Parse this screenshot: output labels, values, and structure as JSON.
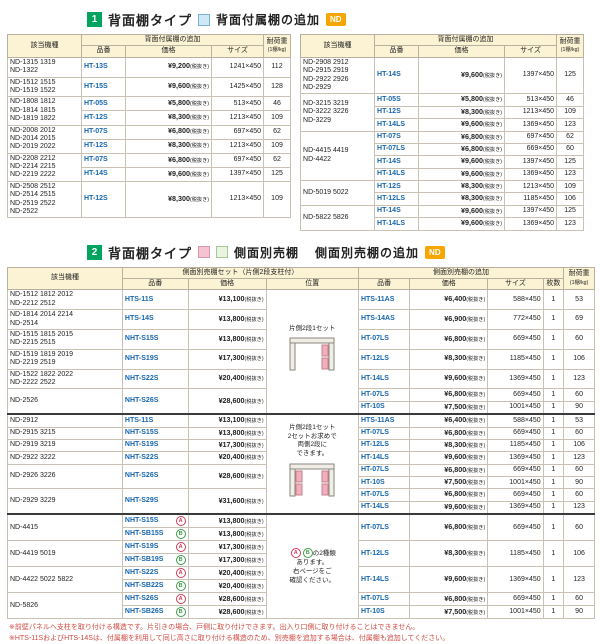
{
  "labels": {
    "tax_suffix": "(税抜き)",
    "col_model": "該当機種",
    "col_part": "品番",
    "col_price": "価格",
    "col_size": "サイズ",
    "col_load": "耐荷重",
    "col_load_sub": "(1棚/kg)",
    "col_count": "枚数",
    "col_position": "位置",
    "nd_badge": "ND"
  },
  "section1": {
    "number": "1",
    "title": "背面棚タイプ",
    "legend_label": "背面付属棚の追加",
    "group_header": "背面付属棚の追加",
    "tables": [
      {
        "groups": [
          {
            "models": [
              "ND-1315 1319",
              "ND-1322"
            ],
            "items": [
              {
                "code": "HT-13S",
                "price": "¥9,200",
                "size": "1241×450",
                "load": "112"
              }
            ]
          },
          {
            "models": [
              "ND-1512 1515",
              "ND-1519 1522"
            ],
            "items": [
              {
                "code": "HT-15S",
                "price": "¥9,600",
                "size": "1425×450",
                "load": "128"
              }
            ]
          },
          {
            "models": [
              "ND-1808 1812",
              "ND-1814 1815",
              "ND-1819 1822"
            ],
            "items": [
              {
                "code": "HT-05S",
                "price": "¥5,800",
                "size": "513×450",
                "load": "46"
              },
              {
                "code": "HT-12S",
                "price": "¥8,300",
                "size": "1213×450",
                "load": "109"
              }
            ]
          },
          {
            "models": [
              "ND-2008 2012",
              "ND-2014 2015",
              "ND-2019 2022"
            ],
            "items": [
              {
                "code": "HT-07S",
                "price": "¥6,800",
                "size": "697×450",
                "load": "62"
              },
              {
                "code": "HT-12S",
                "price": "¥8,300",
                "size": "1213×450",
                "load": "109"
              }
            ]
          },
          {
            "models": [
              "ND-2208 2212",
              "ND-2214 2215",
              "ND-2219 2222"
            ],
            "items": [
              {
                "code": "HT-07S",
                "price": "¥6,800",
                "size": "697×450",
                "load": "62"
              },
              {
                "code": "HT-14S",
                "price": "¥9,600",
                "size": "1397×450",
                "load": "125"
              }
            ]
          },
          {
            "models": [
              "ND-2508 2512",
              "ND-2514 2515",
              "ND-2519 2522",
              "ND-2522"
            ],
            "items": [
              {
                "code": "HT-12S",
                "price": "¥8,300",
                "size": "1213×450",
                "load": "109"
              }
            ]
          }
        ]
      },
      {
        "groups": [
          {
            "models": [
              "ND-2908 2912",
              "ND-2915 2919",
              "ND-2922 2926",
              "ND-2929"
            ],
            "items": [
              {
                "code": "HT-14S",
                "price": "¥9,600",
                "size": "1397×450",
                "load": "125"
              }
            ]
          },
          {
            "models": [
              "ND-3215 3219",
              "ND-3222 3226",
              "ND-3229"
            ],
            "items": [
              {
                "code": "HT-05S",
                "price": "¥5,800",
                "size": "513×450",
                "load": "46"
              },
              {
                "code": "HT-12S",
                "price": "¥8,300",
                "size": "1213×450",
                "load": "109"
              },
              {
                "code": "HT-14LS",
                "price": "¥9,600",
                "size": "1369×450",
                "load": "123"
              }
            ]
          },
          {
            "models": [
              "ND-4415 4419",
              "ND-4422"
            ],
            "items": [
              {
                "code": "HT-07S",
                "price": "¥6,800",
                "size": "697×450",
                "load": "62"
              },
              {
                "code": "HT-07LS",
                "price": "¥6,800",
                "size": "669×450",
                "load": "60"
              },
              {
                "code": "HT-14S",
                "price": "¥9,600",
                "size": "1397×450",
                "load": "125"
              },
              {
                "code": "HT-14LS",
                "price": "¥9,600",
                "size": "1369×450",
                "load": "123"
              }
            ]
          },
          {
            "models": [
              "ND-5019 5022"
            ],
            "items": [
              {
                "code": "HT-12S",
                "price": "¥8,300",
                "size": "1213×450",
                "load": "109"
              },
              {
                "code": "HT-12LS",
                "price": "¥8,300",
                "size": "1185×450",
                "load": "106"
              }
            ]
          },
          {
            "models": [
              "ND-5822 5826"
            ],
            "items": [
              {
                "code": "HT-14S",
                "price": "¥9,600",
                "size": "1397×450",
                "load": "125"
              },
              {
                "code": "HT-14LS",
                "price": "¥9,600",
                "size": "1369×450",
                "load": "123"
              }
            ]
          }
        ]
      }
    ]
  },
  "section2": {
    "number": "2",
    "title": "背面棚タイプ",
    "legend_label": "側面別売棚",
    "subtitle": "側面別売棚の追加",
    "set_header": "側面別売棚セット（片側2段支柱付）",
    "add_header": "側面別売棚の追加",
    "position_blocks": [
      {
        "lines": [
          "片側2段1セット"
        ],
        "diagram": "one-side"
      },
      {
        "lines": [
          "片側2段1セット",
          "2セットお求めで",
          "両側2段に",
          "できます。"
        ],
        "diagram": "both-sides"
      },
      {
        "marks": [
          "A",
          "B"
        ],
        "lines": [
          "の2種類",
          "あります。",
          "右ページをご",
          "確認ください。"
        ]
      }
    ],
    "groups": [
      {
        "block": 0,
        "models": [
          "ND-1512 1812 2012",
          "ND-2212 2512"
        ],
        "set": [
          {
            "code": "HTS-11S",
            "price": "¥13,100"
          }
        ],
        "add": [
          {
            "code": "HTS-11AS",
            "price": "¥6,400",
            "size": "588×450",
            "count": "1",
            "load": "53"
          }
        ]
      },
      {
        "block": 0,
        "models": [
          "ND-1814 2014 2214",
          "ND-2514"
        ],
        "set": [
          {
            "code": "HTS-14S",
            "price": "¥13,800"
          }
        ],
        "add": [
          {
            "code": "HTS-14AS",
            "price": "¥6,900",
            "size": "772×450",
            "count": "1",
            "load": "69"
          }
        ]
      },
      {
        "block": 0,
        "models": [
          "ND-1515 1815 2015",
          "ND-2215 2515"
        ],
        "set": [
          {
            "code": "NHT-S15S",
            "price": "¥13,800"
          }
        ],
        "add": [
          {
            "code": "HT-07LS",
            "price": "¥6,800",
            "size": "669×450",
            "count": "1",
            "load": "60"
          }
        ]
      },
      {
        "block": 0,
        "models": [
          "ND-1519 1819 2019",
          "ND-2219 2519"
        ],
        "set": [
          {
            "code": "NHT-S19S",
            "price": "¥17,300"
          }
        ],
        "add": [
          {
            "code": "HT-12LS",
            "price": "¥8,300",
            "size": "1185×450",
            "count": "1",
            "load": "106"
          }
        ]
      },
      {
        "block": 0,
        "models": [
          "ND-1522 1822 2022",
          "ND-2222 2522"
        ],
        "set": [
          {
            "code": "NHT-S22S",
            "price": "¥20,400"
          }
        ],
        "add": [
          {
            "code": "HT-14LS",
            "price": "¥9,600",
            "size": "1369×450",
            "count": "1",
            "load": "123"
          }
        ]
      },
      {
        "block": 0,
        "models": [
          "ND-2526"
        ],
        "set": [
          {
            "code": "NHT-S26S",
            "price": "¥28,600"
          }
        ],
        "add": [
          {
            "code": "HT-07LS",
            "price": "¥6,800",
            "size": "669×450",
            "count": "1",
            "load": "60"
          },
          {
            "code": "HT-10S",
            "price": "¥7,500",
            "size": "1001×450",
            "count": "1",
            "load": "90"
          }
        ]
      },
      {
        "block": 1,
        "models": [
          "ND-2912"
        ],
        "set": [
          {
            "code": "HTS-11S",
            "price": "¥13,100"
          }
        ],
        "add": [
          {
            "code": "HTS-11AS",
            "price": "¥6,400",
            "size": "588×450",
            "count": "1",
            "load": "53"
          }
        ]
      },
      {
        "block": 1,
        "models": [
          "ND-2915 3215"
        ],
        "set": [
          {
            "code": "NHT-S15S",
            "price": "¥13,800"
          }
        ],
        "add": [
          {
            "code": "HT-07LS",
            "price": "¥6,800",
            "size": "669×450",
            "count": "1",
            "load": "60"
          }
        ]
      },
      {
        "block": 1,
        "models": [
          "ND-2919 3219"
        ],
        "set": [
          {
            "code": "NHT-S19S",
            "price": "¥17,300"
          }
        ],
        "add": [
          {
            "code": "HT-12LS",
            "price": "¥8,300",
            "size": "1185×450",
            "count": "1",
            "load": "106"
          }
        ]
      },
      {
        "block": 1,
        "models": [
          "ND-2922 3222"
        ],
        "set": [
          {
            "code": "NHT-S22S",
            "price": "¥20,400"
          }
        ],
        "add": [
          {
            "code": "HT-14LS",
            "price": "¥9,600",
            "size": "1369×450",
            "count": "1",
            "load": "123"
          }
        ]
      },
      {
        "block": 1,
        "models": [
          "ND-2926 3226"
        ],
        "set": [
          {
            "code": "NHT-S26S",
            "price": "¥28,600"
          }
        ],
        "add": [
          {
            "code": "HT-07LS",
            "price": "¥6,800",
            "size": "669×450",
            "count": "1",
            "load": "60"
          },
          {
            "code": "HT-10S",
            "price": "¥7,500",
            "size": "1001×450",
            "count": "1",
            "load": "90"
          }
        ]
      },
      {
        "block": 1,
        "models": [
          "ND-2929 3229"
        ],
        "set": [
          {
            "code": "NHT-S29S",
            "price": "¥31,600"
          }
        ],
        "add": [
          {
            "code": "HT-07LS",
            "price": "¥6,800",
            "size": "669×450",
            "count": "1",
            "load": "60"
          },
          {
            "code": "HT-14LS",
            "price": "¥9,600",
            "size": "1369×450",
            "count": "1",
            "load": "123"
          }
        ]
      },
      {
        "block": 2,
        "models": [
          "ND-4415"
        ],
        "set": [
          {
            "code": "NHT-S15S",
            "mark": "A",
            "price": "¥13,800"
          },
          {
            "code": "NHT-SB15S",
            "mark": "B",
            "price": "¥13,800"
          }
        ],
        "add": [
          {
            "code": "HT-07LS",
            "price": "¥6,800",
            "size": "669×450",
            "count": "1",
            "load": "60"
          }
        ]
      },
      {
        "block": 2,
        "models": [
          "ND-4419 5019"
        ],
        "set": [
          {
            "code": "NHT-S19S",
            "mark": "A",
            "price": "¥17,300"
          },
          {
            "code": "NHT-SB19S",
            "mark": "B",
            "price": "¥17,300"
          }
        ],
        "add": [
          {
            "code": "HT-12LS",
            "price": "¥8,300",
            "size": "1185×450",
            "count": "1",
            "load": "106"
          }
        ]
      },
      {
        "block": 2,
        "models": [
          "ND-4422 5022 5822"
        ],
        "set": [
          {
            "code": "NHT-S22S",
            "mark": "A",
            "price": "¥20,400"
          },
          {
            "code": "NHT-SB22S",
            "mark": "B",
            "price": "¥20,400"
          }
        ],
        "add": [
          {
            "code": "HT-14LS",
            "price": "¥9,600",
            "size": "1369×450",
            "count": "1",
            "load": "123"
          }
        ]
      },
      {
        "block": 2,
        "models": [
          "ND-5826"
        ],
        "set": [
          {
            "code": "NHT-S26S",
            "mark": "A",
            "price": "¥28,600"
          },
          {
            "code": "NHT-SB26S",
            "mark": "B",
            "price": "¥28,600"
          }
        ],
        "add": [
          {
            "code": "HT-07LS",
            "price": "¥6,800",
            "size": "669×450",
            "count": "1",
            "load": "60"
          },
          {
            "code": "HT-10S",
            "price": "¥7,500",
            "size": "1001×450",
            "count": "1",
            "load": "90"
          }
        ]
      }
    ],
    "notes": [
      "※前壁パネルへ支柱を取り付ける構造です。片引きの場合、戸側に取り付けできます。出入り口側に取り付けることはできません。",
      "※HTS-11SおよびHTS-14Sは、付属棚を利用して同じ高さに取り付ける構造のため、別売棚を追加する場合は、付属棚も追加してください。"
    ]
  }
}
